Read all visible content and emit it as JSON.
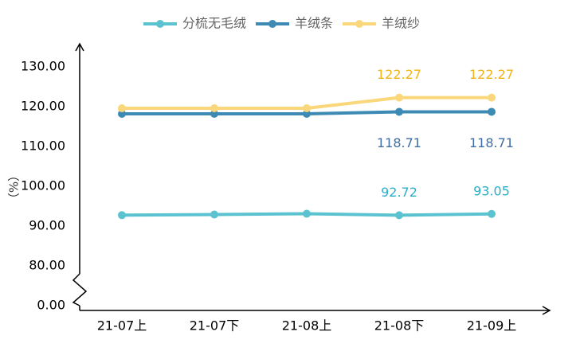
{
  "chart_data": {
    "type": "line",
    "y_label": "（%）",
    "categories": [
      "21-07上",
      "21-07下",
      "21-08上",
      "21-08下",
      "21-09上"
    ],
    "series": [
      {
        "name": "分梳无毛绒",
        "color": "#5bc3cf",
        "label_color": "#2bafc9",
        "values": [
          92.74,
          92.9,
          93.1,
          92.72,
          93.05
        ],
        "value_labels": [
          null,
          null,
          null,
          "92.72",
          "93.05"
        ]
      },
      {
        "name": "羊绒条",
        "color": "#3d8bb5",
        "label_color": "#3f6ea6",
        "values": [
          118.2,
          118.2,
          118.2,
          118.71,
          118.71
        ],
        "value_labels": [
          null,
          null,
          null,
          "118.71",
          "118.71"
        ]
      },
      {
        "name": "羊绒纱",
        "color": "#f9d77a",
        "label_color": "#f0b416",
        "values": [
          119.6,
          119.6,
          119.6,
          122.27,
          122.27
        ],
        "value_labels": [
          null,
          null,
          null,
          "122.27",
          "122.27"
        ]
      }
    ],
    "ylim": [
      0,
      135
    ],
    "axis_break": true,
    "yticks": [
      {
        "value": 0,
        "label": "0.00"
      },
      {
        "value": 80,
        "label": "80.00"
      },
      {
        "value": 90,
        "label": "90.00"
      },
      {
        "value": 100,
        "label": "100.00"
      },
      {
        "value": 110,
        "label": "110.00"
      },
      {
        "value": 120,
        "label": "120.00"
      },
      {
        "value": 130,
        "label": "130.00"
      }
    ],
    "legend": "top"
  }
}
